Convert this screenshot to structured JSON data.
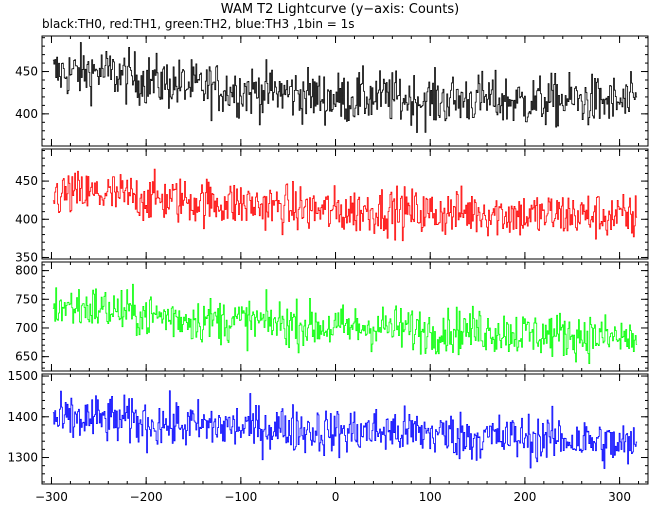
{
  "chart_data": {
    "type": "line",
    "title": "WAM T2 Lightcurve (y−axis: Counts)",
    "subtitle": "black:TH0, red:TH1, green:TH2, blue:TH3 ,1bin = 1s",
    "xlim": [
      -310,
      330
    ],
    "x_ticks": [
      -300,
      -200,
      -100,
      0,
      100,
      200,
      300
    ],
    "x_tick_labels": [
      "−300",
      "−200",
      "−100",
      "0",
      "100",
      "200",
      "300"
    ],
    "bin_seconds": 1,
    "x_range_data": [
      -298,
      318
    ],
    "panels": [
      {
        "name": "TH0",
        "color": "#000000",
        "ylim": [
          362,
          492
        ],
        "y_ticks": [
          400,
          450
        ],
        "y_tick_labels": [
          "400",
          "450"
        ],
        "trend": [
          [
            -298,
            448
          ],
          [
            -250,
            450
          ],
          [
            -200,
            440
          ],
          [
            -150,
            432
          ],
          [
            -100,
            428
          ],
          [
            -50,
            425
          ],
          [
            0,
            418
          ],
          [
            50,
            420
          ],
          [
            100,
            415
          ],
          [
            150,
            418
          ],
          [
            200,
            414
          ],
          [
            250,
            416
          ],
          [
            318,
            412
          ]
        ],
        "noise_amplitude": 22
      },
      {
        "name": "TH1",
        "color": "#ff0000",
        "ylim": [
          348,
          492
        ],
        "y_ticks": [
          350,
          400,
          450
        ],
        "y_tick_labels": [
          "350",
          "400",
          "450"
        ],
        "trend": [
          [
            -298,
            432
          ],
          [
            -250,
            433
          ],
          [
            -200,
            428
          ],
          [
            -150,
            424
          ],
          [
            -100,
            420
          ],
          [
            -50,
            415
          ],
          [
            0,
            410
          ],
          [
            50,
            412
          ],
          [
            100,
            408
          ],
          [
            150,
            410
          ],
          [
            200,
            405
          ],
          [
            250,
            406
          ],
          [
            318,
            402
          ]
        ],
        "noise_amplitude": 22
      },
      {
        "name": "TH2",
        "color": "#00ff00",
        "ylim": [
          625,
          815
        ],
        "y_ticks": [
          650,
          700,
          750,
          800
        ],
        "y_tick_labels": [
          "650",
          "700",
          "750",
          "800"
        ],
        "trend": [
          [
            -298,
            738
          ],
          [
            -250,
            735
          ],
          [
            -200,
            722
          ],
          [
            -150,
            715
          ],
          [
            -100,
            712
          ],
          [
            -50,
            708
          ],
          [
            0,
            700
          ],
          [
            50,
            702
          ],
          [
            100,
            695
          ],
          [
            150,
            697
          ],
          [
            200,
            690
          ],
          [
            250,
            688
          ],
          [
            318,
            680
          ]
        ],
        "noise_amplitude": 28
      },
      {
        "name": "TH3",
        "color": "#0000ff",
        "ylim": [
          1235,
          1505
        ],
        "y_ticks": [
          1300,
          1400,
          1500
        ],
        "y_tick_labels": [
          "1300",
          "1400",
          "1500"
        ],
        "trend": [
          [
            -298,
            1390
          ],
          [
            -250,
            1395
          ],
          [
            -200,
            1385
          ],
          [
            -150,
            1378
          ],
          [
            -100,
            1375
          ],
          [
            -50,
            1372
          ],
          [
            0,
            1362
          ],
          [
            50,
            1365
          ],
          [
            100,
            1360
          ],
          [
            150,
            1350
          ],
          [
            200,
            1348
          ],
          [
            250,
            1345
          ],
          [
            318,
            1325
          ]
        ],
        "noise_amplitude": 42
      }
    ]
  }
}
